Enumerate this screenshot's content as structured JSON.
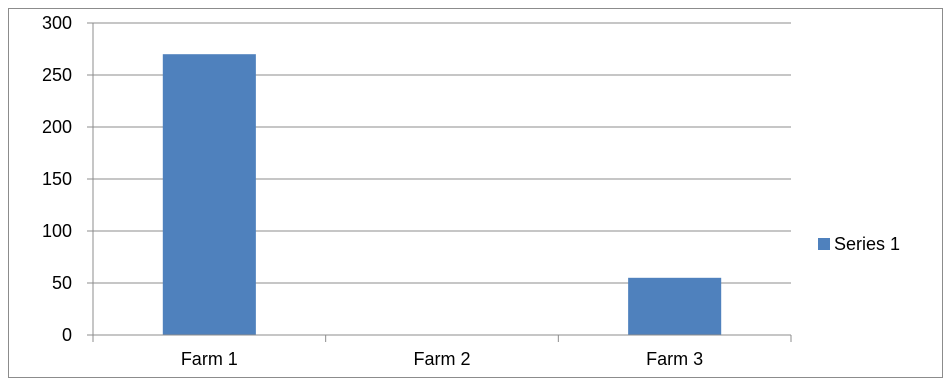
{
  "chart_data": {
    "type": "bar",
    "categories": [
      "Farm 1",
      "Farm 2",
      "Farm 3"
    ],
    "series": [
      {
        "name": "Series 1",
        "values": [
          270,
          0,
          55
        ],
        "color": "#4f81bd"
      }
    ],
    "ylim": [
      0,
      300
    ],
    "yticks": [
      0,
      50,
      100,
      150,
      200,
      250,
      300
    ],
    "grid": true,
    "legend_position": "right"
  }
}
